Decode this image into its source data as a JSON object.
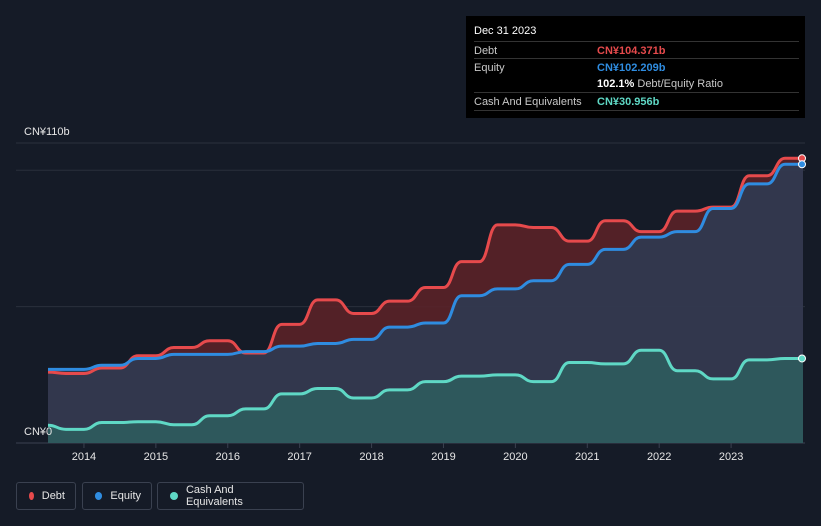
{
  "tooltip": {
    "date": "Dec 31 2023",
    "debt_label": "Debt",
    "debt_value": "CN¥104.371b",
    "equity_label": "Equity",
    "equity_value": "CN¥102.209b",
    "ratio_value": "102.1%",
    "ratio_label": "Debt/Equity Ratio",
    "cash_label": "Cash And Equivalents",
    "cash_value": "CN¥30.956b"
  },
  "legend": {
    "debt": "Debt",
    "equity": "Equity",
    "cash": "Cash And Equivalents"
  },
  "colors": {
    "debt": "#e64a4c",
    "equity": "#2f8ce0",
    "cash": "#5fd8c5",
    "background": "#151b27"
  },
  "chart_data": {
    "type": "area",
    "ylabel_top": "CN¥110b",
    "ylabel_bottom": "CN¥0",
    "ylim": [
      0,
      110
    ],
    "xlim": [
      2013.5,
      2024.0
    ],
    "xticks": [
      "2014",
      "2015",
      "2016",
      "2017",
      "2018",
      "2019",
      "2020",
      "2021",
      "2022",
      "2023"
    ],
    "series": [
      {
        "name": "Debt",
        "points": [
          [
            2013.5,
            26
          ],
          [
            2013.75,
            25.5
          ],
          [
            2014.0,
            25.5
          ],
          [
            2014.25,
            27.5
          ],
          [
            2014.5,
            27.5
          ],
          [
            2014.75,
            32
          ],
          [
            2015.0,
            32
          ],
          [
            2015.25,
            35
          ],
          [
            2015.5,
            35
          ],
          [
            2015.75,
            37.5
          ],
          [
            2016.0,
            37.5
          ],
          [
            2016.25,
            33
          ],
          [
            2016.5,
            33
          ],
          [
            2016.75,
            43.5
          ],
          [
            2017.0,
            43.5
          ],
          [
            2017.25,
            52.5
          ],
          [
            2017.5,
            52.5
          ],
          [
            2017.75,
            47.5
          ],
          [
            2018.0,
            47.5
          ],
          [
            2018.25,
            52
          ],
          [
            2018.5,
            52
          ],
          [
            2018.75,
            57
          ],
          [
            2019.0,
            57
          ],
          [
            2019.25,
            66.5
          ],
          [
            2019.5,
            66.5
          ],
          [
            2019.75,
            80
          ],
          [
            2020.0,
            80
          ],
          [
            2020.25,
            79
          ],
          [
            2020.5,
            79
          ],
          [
            2020.75,
            74
          ],
          [
            2021.0,
            74
          ],
          [
            2021.25,
            81.5
          ],
          [
            2021.5,
            81.5
          ],
          [
            2021.75,
            77.5
          ],
          [
            2022.0,
            77.5
          ],
          [
            2022.25,
            85
          ],
          [
            2022.5,
            85
          ],
          [
            2022.75,
            86.5
          ],
          [
            2023.0,
            86.5
          ],
          [
            2023.25,
            98
          ],
          [
            2023.5,
            98
          ],
          [
            2023.75,
            104.4
          ],
          [
            2024.0,
            104.4
          ]
        ]
      },
      {
        "name": "Equity",
        "points": [
          [
            2013.5,
            27
          ],
          [
            2013.75,
            27
          ],
          [
            2014.0,
            27
          ],
          [
            2014.25,
            28.5
          ],
          [
            2014.5,
            28.5
          ],
          [
            2014.75,
            31
          ],
          [
            2015.0,
            31
          ],
          [
            2015.25,
            32.5
          ],
          [
            2015.5,
            32.5
          ],
          [
            2015.75,
            32.5
          ],
          [
            2016.0,
            32.5
          ],
          [
            2016.25,
            33.5
          ],
          [
            2016.5,
            33.5
          ],
          [
            2016.75,
            35.5
          ],
          [
            2017.0,
            35.5
          ],
          [
            2017.25,
            36.5
          ],
          [
            2017.5,
            36.5
          ],
          [
            2017.75,
            38
          ],
          [
            2018.0,
            38
          ],
          [
            2018.25,
            42.5
          ],
          [
            2018.5,
            42.5
          ],
          [
            2018.75,
            44
          ],
          [
            2019.0,
            44
          ],
          [
            2019.25,
            54
          ],
          [
            2019.5,
            54
          ],
          [
            2019.75,
            56.5
          ],
          [
            2020.0,
            56.5
          ],
          [
            2020.25,
            59.5
          ],
          [
            2020.5,
            59.5
          ],
          [
            2020.75,
            65.5
          ],
          [
            2021.0,
            65.5
          ],
          [
            2021.25,
            71
          ],
          [
            2021.5,
            71
          ],
          [
            2021.75,
            75.5
          ],
          [
            2022.0,
            75.5
          ],
          [
            2022.25,
            77.5
          ],
          [
            2022.5,
            77.5
          ],
          [
            2022.75,
            86
          ],
          [
            2023.0,
            86
          ],
          [
            2023.25,
            95
          ],
          [
            2023.5,
            95
          ],
          [
            2023.75,
            102.2
          ],
          [
            2024.0,
            102.2
          ]
        ]
      },
      {
        "name": "Cash And Equivalents",
        "points": [
          [
            2013.5,
            6.5
          ],
          [
            2013.75,
            5
          ],
          [
            2014.0,
            5
          ],
          [
            2014.25,
            7.5
          ],
          [
            2014.5,
            7.5
          ],
          [
            2014.75,
            7.8
          ],
          [
            2015.0,
            7.8
          ],
          [
            2015.25,
            6.7
          ],
          [
            2015.5,
            6.7
          ],
          [
            2015.75,
            10
          ],
          [
            2016.0,
            10
          ],
          [
            2016.25,
            12.5
          ],
          [
            2016.5,
            12.5
          ],
          [
            2016.75,
            18
          ],
          [
            2017.0,
            18
          ],
          [
            2017.25,
            20
          ],
          [
            2017.5,
            20
          ],
          [
            2017.75,
            16.5
          ],
          [
            2018.0,
            16.5
          ],
          [
            2018.25,
            19.5
          ],
          [
            2018.5,
            19.5
          ],
          [
            2018.75,
            22.5
          ],
          [
            2019.0,
            22.5
          ],
          [
            2019.25,
            24.5
          ],
          [
            2019.5,
            24.5
          ],
          [
            2019.75,
            25
          ],
          [
            2020.0,
            25
          ],
          [
            2020.25,
            22.5
          ],
          [
            2020.5,
            22.5
          ],
          [
            2020.75,
            29.5
          ],
          [
            2021.0,
            29.5
          ],
          [
            2021.25,
            29
          ],
          [
            2021.5,
            29
          ],
          [
            2021.75,
            34
          ],
          [
            2022.0,
            34
          ],
          [
            2022.25,
            26.5
          ],
          [
            2022.5,
            26.5
          ],
          [
            2022.75,
            23.5
          ],
          [
            2023.0,
            23.5
          ],
          [
            2023.25,
            30.5
          ],
          [
            2023.5,
            30.5
          ],
          [
            2023.75,
            31
          ],
          [
            2024.0,
            31
          ]
        ]
      }
    ]
  }
}
